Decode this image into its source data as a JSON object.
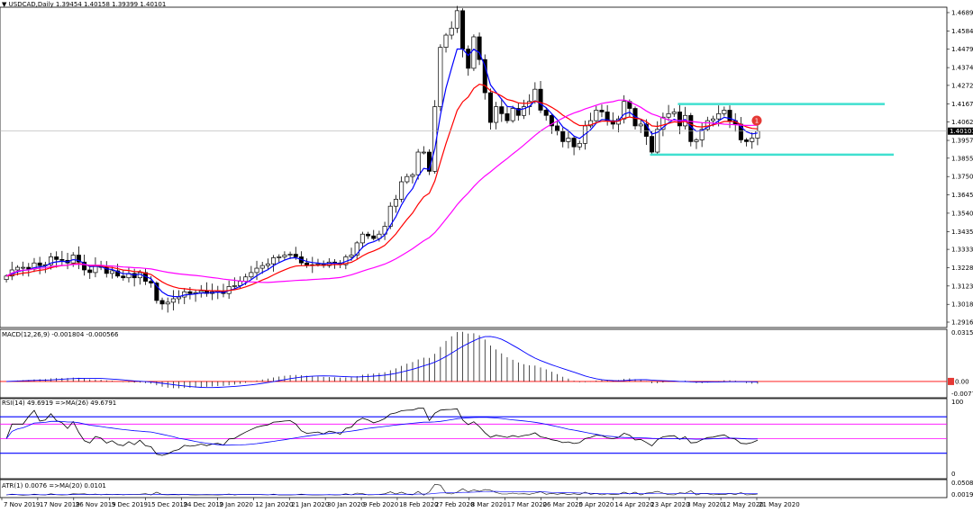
{
  "chart_data": [
    {
      "type": "candlestick",
      "title": "USDCAD,Daily",
      "ohlc_readout": "1.39454 1.40158 1.39399 1.40101",
      "price_label": "1.40101",
      "ylim": [
        1.2916,
        1.4689
      ],
      "y_ticks": [
        "1.46890",
        "1.45840",
        "1.44790",
        "1.43740",
        "1.42720",
        "1.41670",
        "1.40620",
        "1.39570",
        "1.38550",
        "1.37500",
        "1.36450",
        "1.35400",
        "1.34350",
        "1.33330",
        "1.32280",
        "1.31230",
        "1.30180",
        "1.29160"
      ],
      "x_ticks": [
        "7 Nov 2019",
        "17 Nov 2019",
        "26 Nov 2019",
        "5 Dec 2019",
        "15 Dec 2019",
        "24 Dec 2019",
        "2 Jan 2020",
        "12 Jan 2020",
        "21 Jan 2020",
        "30 Jan 2020",
        "9 Feb 2020",
        "18 Feb 2020",
        "27 Feb 2020",
        "8 Mar 2020",
        "17 Mar 2020",
        "26 Mar 2020",
        "5 Apr 2020",
        "14 Apr 2020",
        "23 Apr 2020",
        "3 May 2020",
        "12 May 2020",
        "21 May 2020"
      ],
      "closes": [
        1.318,
        1.3215,
        1.323,
        1.323,
        1.322,
        1.3255,
        1.324,
        1.3245,
        1.329,
        1.3275,
        1.327,
        1.3255,
        1.33,
        1.326,
        1.3215,
        1.32,
        1.324,
        1.323,
        1.3195,
        1.321,
        1.318,
        1.317,
        1.3195,
        1.317,
        1.32,
        1.315,
        1.314,
        1.304,
        1.302,
        1.303,
        1.305,
        1.306,
        1.309,
        1.308,
        1.3085,
        1.3095,
        1.308,
        1.309,
        1.3095,
        1.308,
        1.312,
        1.3125,
        1.315,
        1.3175,
        1.32,
        1.3225,
        1.324,
        1.325,
        1.3285,
        1.329,
        1.33,
        1.3305,
        1.329,
        1.3255,
        1.324,
        1.3245,
        1.325,
        1.324,
        1.326,
        1.3255,
        1.3245,
        1.329,
        1.33,
        1.337,
        1.342,
        1.341,
        1.3395,
        1.342,
        1.3465,
        1.358,
        1.362,
        1.372,
        1.375,
        1.376,
        1.389,
        1.389,
        1.378,
        1.415,
        1.449,
        1.456,
        1.46,
        1.47,
        1.448,
        1.437,
        1.455,
        1.442,
        1.423,
        1.406,
        1.415,
        1.411,
        1.407,
        1.414,
        1.41,
        1.415,
        1.418,
        1.425,
        1.413,
        1.41,
        1.404,
        1.401,
        1.395,
        1.397,
        1.392,
        1.394,
        1.404,
        1.407,
        1.413,
        1.412,
        1.407,
        1.405,
        1.408,
        1.418,
        1.414,
        1.404,
        1.405,
        1.398,
        1.389,
        1.402,
        1.409,
        1.411,
        1.412,
        1.404,
        1.41,
        1.395,
        1.396,
        1.402,
        1.407,
        1.408,
        1.411,
        1.413,
        1.407,
        1.405,
        1.396,
        1.395,
        1.397,
        1.401
      ],
      "overlay_series": [
        {
          "name": "",
          "color": "#0000ff",
          "kind": "MA-fast"
        },
        {
          "name": "",
          "color": "#ff0000",
          "kind": "MA-mid"
        },
        {
          "name": "",
          "color": "#ff00ff",
          "kind": "MA-slow"
        }
      ],
      "annotations": {
        "resistance_level": 1.4165,
        "support_level": 1.3875,
        "level_color": "#40e0d0",
        "marker_label": "1",
        "marker_color": "#e53935"
      },
      "grid": false,
      "colors": {
        "up": "#ffffff",
        "down": "#000000",
        "wick": "#000000"
      }
    },
    {
      "type": "histogram",
      "title": "MACD(12,26,9) -0.001804 -0.000566",
      "y_ticks": [
        "0.031506",
        "0.00",
        "-0.007787"
      ],
      "zero_label": "0.00",
      "signal_color": "#0000ff",
      "zero_line_color": "#ff0000"
    },
    {
      "type": "line",
      "title": "RSI(14) 49.6919  =>MA(26) 49.6791",
      "y_ticks": [
        "100",
        "0"
      ],
      "levels": [
        70,
        50,
        30
      ],
      "line_color": "#000000",
      "ma_color": "#0000ff",
      "level_colors": [
        "#ff00ff",
        "#0000ff"
      ]
    },
    {
      "type": "line",
      "title": "ATR(1) 0.0076  =>MA(20) 0.0101",
      "y_ticks": [
        "0.0508",
        "0.0019"
      ],
      "line_color": "#000000",
      "ma_color": "#0000ff"
    }
  ]
}
